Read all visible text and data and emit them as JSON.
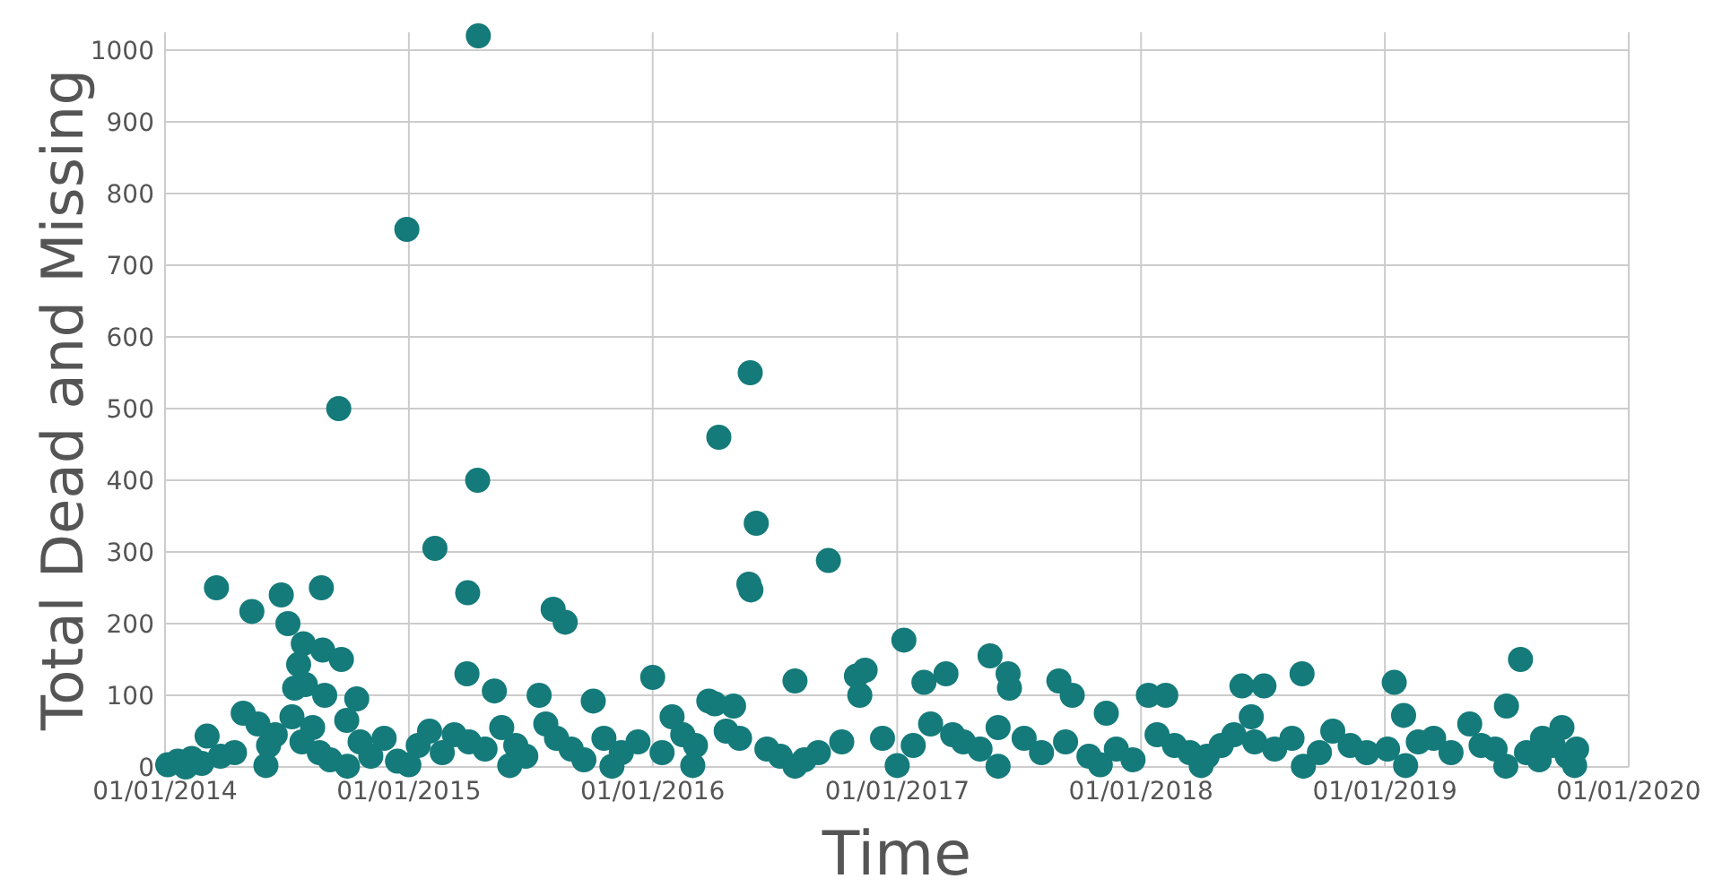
{
  "chart_data": {
    "type": "scatter",
    "xlabel": "Time",
    "ylabel": "Total Dead and Missing",
    "xlim": [
      "2014-01-01",
      "2020-01-01"
    ],
    "xticks": [
      {
        "value": "2014-01-01",
        "label": "01/01/2014"
      },
      {
        "value": "2015-01-01",
        "label": "01/01/2015"
      },
      {
        "value": "2016-01-01",
        "label": "01/01/2016"
      },
      {
        "value": "2017-01-01",
        "label": "01/01/2017"
      },
      {
        "value": "2018-01-01",
        "label": "01/01/2018"
      },
      {
        "value": "2019-01-01",
        "label": "01/01/2019"
      },
      {
        "value": "2020-01-01",
        "label": "01/01/2020"
      }
    ],
    "ylim": [
      0,
      1025
    ],
    "yticks": [
      0,
      100,
      200,
      300,
      400,
      500,
      600,
      700,
      800,
      900,
      1000
    ],
    "grid": true,
    "marker": "circle",
    "series": [
      {
        "color": "#147a7a",
        "x": [
          "2015-04-15",
          "2014-12-29",
          "2014-09-18",
          "2015-04-14",
          "2015-02-09",
          "2014-03-19",
          "2014-08-23",
          "2014-06-24",
          "2014-05-11",
          "2014-07-04",
          "2015-03-30",
          "2015-08-05",
          "2015-08-23",
          "2014-07-27",
          "2014-08-25",
          "2014-09-22",
          "2014-07-20",
          "2014-07-14",
          "2015-03-29",
          "2014-07-30",
          "2015-05-09",
          "2014-08-28",
          "2014-10-15",
          "2015-07-15",
          "2015-10-04",
          "2016-01-01",
          "2016-04-09",
          "2016-05-26",
          "2016-06-04",
          "2016-05-24",
          "2016-05-27",
          "2016-09-20",
          "2017-01-11",
          "2016-08-01",
          "2016-04-03",
          "2016-05-01",
          "2017-05-20",
          "2017-03-15",
          "2017-02-10",
          "2017-06-16",
          "2017-06-18",
          "2017-08-31",
          "2017-09-20",
          "2017-11-10",
          "2016-11-14",
          "2016-11-01",
          "2016-11-06",
          "2016-03-25",
          "2016-01-30",
          "2018-08-30",
          "2018-06-01",
          "2018-07-04",
          "2018-01-12",
          "2018-02-07",
          "2019-01-15",
          "2019-07-23",
          "2019-07-02",
          "2019-01-29",
          "2019-05-08",
          "2019-09-23",
          "2019-08-25",
          "2018-06-15",
          "2014-01-05",
          "2014-01-20",
          "2014-02-10",
          "2014-02-25",
          "2014-03-05",
          "2014-03-25",
          "2014-04-15",
          "2014-04-28",
          "2014-05-20",
          "2014-06-05",
          "2014-06-15",
          "2014-07-10",
          "2014-07-25",
          "2014-08-10",
          "2014-08-20",
          "2014-09-05",
          "2014-09-30",
          "2014-10-20",
          "2014-11-05",
          "2014-11-25",
          "2014-12-15",
          "2015-01-15",
          "2015-02-01",
          "2015-02-20",
          "2015-03-10",
          "2015-04-01",
          "2015-04-25",
          "2015-05-20",
          "2015-06-10",
          "2015-06-25",
          "2015-07-25",
          "2015-08-10",
          "2015-09-01",
          "2015-09-20",
          "2015-10-20",
          "2015-11-15",
          "2015-12-10",
          "2016-01-15",
          "2016-02-15",
          "2016-03-05",
          "2016-04-20",
          "2016-05-10",
          "2016-06-20",
          "2016-07-10",
          "2016-08-15",
          "2016-09-05",
          "2016-10-10",
          "2016-12-10",
          "2017-01-25",
          "2017-02-20",
          "2017-03-25",
          "2017-04-10",
          "2017-05-05",
          "2017-06-01",
          "2017-07-10",
          "2017-08-05",
          "2017-09-10",
          "2017-10-15",
          "2017-11-25",
          "2017-12-20",
          "2018-01-25",
          "2018-02-20",
          "2018-03-15",
          "2018-04-10",
          "2018-05-01",
          "2018-05-20",
          "2018-06-20",
          "2018-07-20",
          "2018-08-15",
          "2018-09-25",
          "2018-10-15",
          "2018-11-10",
          "2018-12-05",
          "2019-01-05",
          "2019-02-20",
          "2019-03-15",
          "2019-04-10",
          "2019-05-25",
          "2019-06-15",
          "2019-08-01",
          "2019-08-20",
          "2019-09-10",
          "2019-10-01",
          "2019-10-15",
          "2014-02-01",
          "2014-06-01",
          "2014-10-01",
          "2015-01-01",
          "2015-06-01",
          "2015-11-01",
          "2016-03-01",
          "2016-08-01",
          "2017-01-01",
          "2017-06-01",
          "2017-11-01",
          "2018-04-01",
          "2018-09-01",
          "2019-02-01",
          "2019-07-01",
          "2019-10-12"
        ],
        "values": [
          1020,
          750,
          500,
          400,
          305,
          250,
          250,
          240,
          217,
          200,
          243,
          220,
          202,
          172,
          163,
          150,
          143,
          110,
          130,
          115,
          106,
          100,
          95,
          100,
          92,
          125,
          460,
          550,
          340,
          255,
          247,
          288,
          177,
          120,
          88,
          85,
          155,
          130,
          118,
          130,
          110,
          120,
          100,
          75,
          135,
          127,
          100,
          92,
          70,
          130,
          113,
          113,
          100,
          100,
          118,
          150,
          85,
          72,
          60,
          55,
          40,
          70,
          3,
          8,
          12,
          5,
          43,
          15,
          20,
          75,
          60,
          30,
          45,
          70,
          35,
          55,
          20,
          10,
          65,
          35,
          15,
          40,
          8,
          30,
          50,
          20,
          45,
          35,
          25,
          55,
          30,
          15,
          60,
          40,
          25,
          10,
          40,
          20,
          35,
          20,
          45,
          30,
          50,
          40,
          25,
          15,
          10,
          20,
          35,
          40,
          30,
          60,
          45,
          35,
          25,
          55,
          40,
          20,
          35,
          15,
          25,
          10,
          45,
          30,
          20,
          15,
          30,
          45,
          35,
          25,
          40,
          20,
          50,
          30,
          20,
          25,
          35,
          40,
          20,
          30,
          25,
          20,
          10,
          30,
          15,
          25,
          0,
          2,
          1,
          3,
          2,
          1,
          2,
          1,
          2,
          1,
          3,
          2,
          1,
          2,
          1,
          2
        ]
      }
    ]
  }
}
